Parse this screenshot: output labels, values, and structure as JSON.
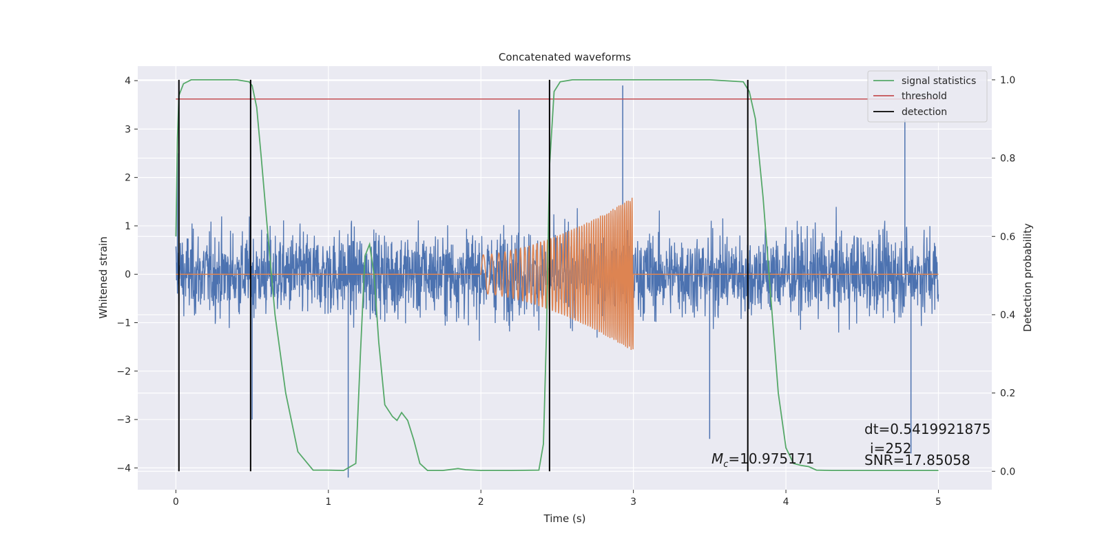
{
  "chart_data": {
    "type": "line",
    "title": "Concatenated waveforms",
    "xlabel": "Time (s)",
    "ylabel": "Whitened strain",
    "y2label": "Detection probability",
    "xlim": [
      -0.25,
      5.35
    ],
    "ylim": [
      -4.45,
      4.3
    ],
    "y2lim": [
      -0.047,
      1.035
    ],
    "x_ticks": [
      "0",
      "1",
      "2",
      "3",
      "4",
      "5"
    ],
    "y_ticks": [
      "−4",
      "−3",
      "−2",
      "−1",
      "0",
      "1",
      "2",
      "3",
      "4"
    ],
    "y2_ticks": [
      "0.0",
      "0.2",
      "0.4",
      "0.6",
      "0.8",
      "1.0"
    ],
    "grid": true,
    "legend_position": "top-right",
    "legend": [
      "signal statistics",
      "threshold",
      "detection"
    ],
    "colors": {
      "strain": "#4c72b0",
      "template": "#dd8452",
      "signal_statistics": "#55a868",
      "threshold": "#c44e52",
      "detection": "#000000",
      "plot_bg": "#eaeaf2",
      "grid": "#ffffff"
    },
    "series": [
      {
        "name": "strain",
        "axis": "left",
        "x_range": [
          0,
          5
        ],
        "typical_envelope": [
          -1.6,
          1.6
        ],
        "peaks": [
          {
            "x": 0.01,
            "y": 2.5
          },
          {
            "x": 0.5,
            "y": -3.0
          },
          {
            "x": 1.13,
            "y": -4.2
          },
          {
            "x": 2.25,
            "y": 3.4
          },
          {
            "x": 2.93,
            "y": 3.9
          },
          {
            "x": 3.5,
            "y": -3.4
          },
          {
            "x": 4.78,
            "y": 3.2
          },
          {
            "x": 4.82,
            "y": -3.7
          }
        ]
      },
      {
        "name": "template",
        "axis": "left",
        "x_range": [
          2.0,
          3.0
        ],
        "amplitude_start": 0.4,
        "amplitude_end": 1.6
      },
      {
        "name": "signal statistics",
        "axis": "right",
        "x": [
          0,
          0.01,
          0.02,
          0.05,
          0.1,
          0.2,
          0.4,
          0.48,
          0.5,
          0.53,
          0.56,
          0.6,
          0.65,
          0.72,
          0.8,
          0.9,
          1.0,
          1.1,
          1.18,
          1.21,
          1.24,
          1.27,
          1.3,
          1.33,
          1.37,
          1.42,
          1.45,
          1.48,
          1.52,
          1.56,
          1.6,
          1.65,
          1.75,
          1.85,
          1.9,
          2.0,
          2.2,
          2.38,
          2.41,
          2.43,
          2.45,
          2.48,
          2.52,
          2.6,
          3.0,
          3.5,
          3.72,
          3.76,
          3.8,
          3.85,
          3.9,
          3.95,
          4.0,
          4.05,
          4.1,
          4.15,
          4.2,
          4.3,
          4.6,
          5.0
        ],
        "y": [
          0.6,
          0.85,
          0.96,
          0.99,
          1.0,
          1.0,
          1.0,
          0.995,
          0.985,
          0.93,
          0.8,
          0.62,
          0.4,
          0.2,
          0.05,
          0.003,
          0.003,
          0.002,
          0.02,
          0.3,
          0.55,
          0.58,
          0.5,
          0.33,
          0.17,
          0.14,
          0.13,
          0.15,
          0.13,
          0.08,
          0.02,
          0.002,
          0.002,
          0.007,
          0.004,
          0.002,
          0.002,
          0.003,
          0.07,
          0.35,
          0.78,
          0.97,
          0.995,
          1.0,
          1.0,
          1.0,
          0.995,
          0.97,
          0.9,
          0.7,
          0.45,
          0.2,
          0.06,
          0.02,
          0.015,
          0.012,
          0.003,
          0.002,
          0.002,
          0.002
        ]
      },
      {
        "name": "threshold",
        "axis": "right",
        "x": [
          0,
          5
        ],
        "y": [
          0.951,
          0.951
        ]
      },
      {
        "name": "detection",
        "axis": "right",
        "type": "vlines",
        "x": [
          0.02,
          0.49,
          2.45,
          3.75
        ],
        "ymin": 0,
        "ymax": 1
      }
    ],
    "annotations": {
      "mc_symbol": "M",
      "mc_subscript": "c",
      "mc_value": "=10.975171",
      "dt": "dt=0.5419921875",
      "i": "i=252",
      "snr": "SNR=17.85058"
    }
  }
}
